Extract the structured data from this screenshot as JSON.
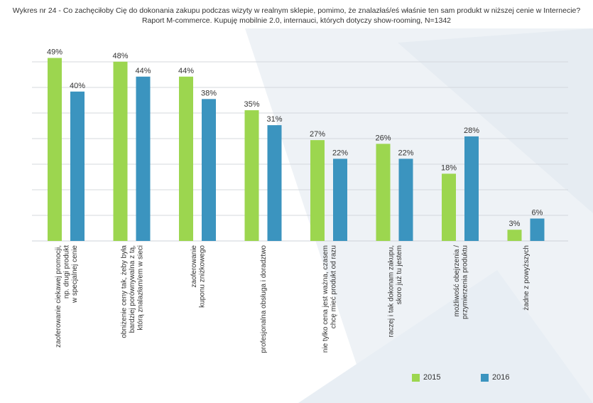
{
  "title_lines": [
    "Wykres nr 24 - Co zachęciłoby Cię do dokonania zakupu podczas wizyty w realnym sklepie, pomimo, że znalazłaś/eś właśnie ten sam produkt w niższej cenie w Internecie?",
    "Raport M-commerce. Kupuję mobilnie 2.0, internauci, których dotyczy show-rooming, N=1342"
  ],
  "colors": {
    "s2015": "#9cd64f",
    "s2016": "#3b94bf",
    "grid": "#d4d8de",
    "axis": "#cfd3d8"
  },
  "chart_data": {
    "type": "bar",
    "title": "Co zachęciłoby Cię do dokonania zakupu podczas wizyty w realnym sklepie, pomimo, że znalazłaś/eś właśnie ten sam produkt w niższej cenie w Internecie?",
    "ylim": [
      0,
      55
    ],
    "grid": true,
    "legend_position": "bottom-right",
    "categories": [
      [
        "zaoferowanie ciekawej promocji,",
        "np. drugi produkt",
        "w specjalnej cenie"
      ],
      [
        "obniżenie ceny tak, żeby była",
        "bardziej porównywalna z tą,",
        "którą znalazłam/em w sieci"
      ],
      [
        "zaoferowanie",
        "kuponu zniżkowego"
      ],
      [
        "profesjonalna obsługa i doradztwo"
      ],
      [
        "nie tylko cena jest ważna, czasem",
        "chcę mieć produkt od razu"
      ],
      [
        "raczej i tak dokonam zakupu,",
        "skoro już tu jestem"
      ],
      [
        "możliwość obejrzenia /",
        "przymierzenia produktu"
      ],
      [
        "żadne z powyższych"
      ]
    ],
    "series": [
      {
        "name": "2015",
        "values": [
          49,
          48,
          44,
          35,
          27,
          26,
          18,
          3
        ],
        "labels": [
          "49%",
          "48%",
          "44%",
          "35%",
          "27%",
          "26%",
          "18%",
          "3%"
        ]
      },
      {
        "name": "2016",
        "values": [
          40,
          44,
          38,
          31,
          22,
          22,
          28,
          6
        ],
        "labels": [
          "40%",
          "44%",
          "38%",
          "31%",
          "22%",
          "22%",
          "28%",
          "6%"
        ]
      }
    ]
  }
}
